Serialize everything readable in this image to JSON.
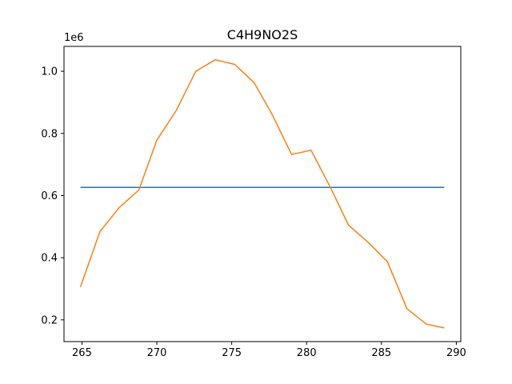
{
  "chart_data": {
    "type": "line",
    "title": "C4H9NO2S",
    "xlabel": "",
    "ylabel": "",
    "y_scale_label": "1e6",
    "y_multiplier": 1000000,
    "xlim": [
      263.8,
      290.3
    ],
    "ylim": [
      130000,
      1080000
    ],
    "xticks": [
      265,
      270,
      275,
      280,
      285,
      290
    ],
    "xtick_labels": [
      "265",
      "270",
      "275",
      "280",
      "285",
      "290"
    ],
    "yticks": [
      200000,
      400000,
      600000,
      800000,
      1000000
    ],
    "ytick_labels": [
      "0.2",
      "0.4",
      "0.6",
      "0.8",
      "1.0"
    ],
    "grid": false,
    "series": [
      {
        "color": "#1f77b4",
        "x": [
          264.9,
          289.2
        ],
        "y": [
          626000,
          626000
        ]
      },
      {
        "color": "#ff7f0e",
        "x": [
          264.9,
          266.2,
          267.5,
          268.8,
          270.0,
          271.3,
          272.6,
          273.9,
          275.2,
          276.5,
          277.7,
          279.0,
          280.3,
          281.6,
          282.8,
          284.1,
          285.4,
          286.7,
          288.0,
          289.2
        ],
        "y": [
          306000,
          484000,
          562000,
          618000,
          778000,
          874000,
          1000000,
          1037000,
          1022000,
          963000,
          861000,
          732000,
          746000,
          625000,
          505000,
          450000,
          387000,
          236000,
          186000,
          174000
        ]
      }
    ]
  }
}
